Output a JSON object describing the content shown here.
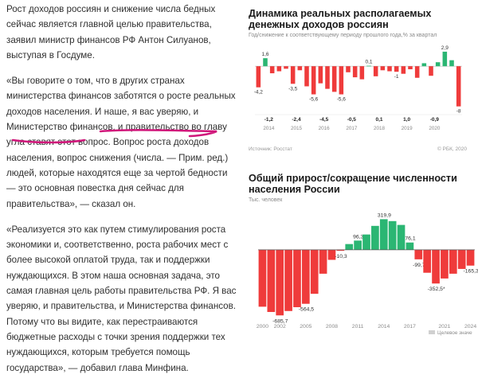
{
  "article": {
    "paragraphs": [
      "Рост доходов россиян и снижение числа бедных сейчас является главной целью правительства, заявил министр финансов РФ Антон Силуанов, выступая в Госдуме.",
      "«Вы говорите о том, что в других странах министерства финансов заботятся о росте реальных доходов населения. И наше, я вас уверяю, и Министерство финансов, и правительство во главу угла ставят этот вопрос. Вопрос роста доходов населения, вопрос снижения (числа. — Прим. ред.) людей, которые находятся еще за чертой бедности — это основная повестка дня сейчас для правительства», — сказал он.",
      "«Реализуется это как путем стимулирования роста экономики и, соответственно, роста рабочих мест с более высокой оплатой труда, так и поддержки нуждающихся. В этом наша основная задача, это самая главная цель работы правительства РФ. Я вас уверяю, и правительства, и Министерства финансов. Потому что вы видите, как перестраиваются бюджетные расходы с точки зрения поддержки тех нуждающихся, которым требуется помощь государства», — добавил глава Минфина."
    ]
  },
  "chart_data": [
    {
      "type": "bar",
      "title": "Динамика реальных располагаемых денежных доходов россиян",
      "subtitle": "Год/снижение к соответствующему периоду прошлого года,% за квартал",
      "xlabel": "",
      "ylabel": "",
      "x_ticks": [
        "2014",
        "2015",
        "2016",
        "2017",
        "2018",
        "2019",
        "2020"
      ],
      "annual_labels": [
        "-1,2",
        "-2,4",
        "-4,5",
        "-0,5",
        "0,1",
        "1,0",
        "-0,9"
      ],
      "values": [
        -4.2,
        1.6,
        -1.4,
        -1.0,
        -0.5,
        -3.5,
        -0.8,
        -4.0,
        -5.6,
        -3.4,
        -4.5,
        -5.1,
        -5.6,
        -1.2,
        -2.2,
        -2.6,
        0.1,
        -2.0,
        -0.8,
        -1.0,
        -1.1,
        -1.5,
        -0.6,
        -2.3,
        0.6,
        -1.9,
        0.8,
        2.9,
        1.2,
        -8.0
      ],
      "labels": [
        "-4,2",
        "1,6",
        "",
        "",
        "",
        "-3,5",
        "",
        "",
        "-5,6",
        "",
        "",
        "",
        "-5,6",
        "",
        "",
        "",
        "0,1",
        "",
        "",
        "",
        "-1",
        "",
        "",
        "",
        "",
        "",
        "",
        "2,9",
        "",
        "-8"
      ],
      "ylim": [
        -9,
        4
      ],
      "colors": {
        "positive": "#2bb673",
        "negative": "#ef3b3b"
      },
      "source": "Источник: Росстат",
      "credit": "© РБК, 2020"
    },
    {
      "type": "bar",
      "title": "Общий прирост/сокращение численности населения России",
      "subtitle": "Тыс. человек",
      "xlabel": "",
      "ylabel": "",
      "x_ticks": [
        "2000",
        "2002",
        "2005",
        "2008",
        "2011",
        "2014",
        "2017",
        "2021",
        "2024"
      ],
      "categories": [
        "2000",
        "2001",
        "2002",
        "2003",
        "2004",
        "2005",
        "2006",
        "2007",
        "2008",
        "2009",
        "2010",
        "2011",
        "2012",
        "2013",
        "2014",
        "2015",
        "2016",
        "2017",
        "2018",
        "2019",
        "2020",
        "2021",
        "2022",
        "2023",
        "2024"
      ],
      "values": [
        -595,
        -650,
        -685.7,
        -640,
        -600,
        -564.5,
        -460,
        -250,
        -105,
        -10.3,
        60,
        96.3,
        160,
        250,
        319.9,
        300,
        260,
        76.1,
        -99.7,
        -240,
        -352.5,
        -300,
        -250,
        -200,
        -165.3
      ],
      "labels": [
        "",
        "",
        "-685,7",
        "",
        "",
        "-564,5",
        "",
        "",
        "",
        "-10,3",
        "",
        "96,3",
        "",
        "",
        "319,9",
        "",
        "",
        "76,1",
        "-99,7",
        "",
        "-352,5*",
        "",
        "",
        "",
        "-165,3"
      ],
      "ylim": [
        -700,
        340
      ],
      "legend": "Целевое значе",
      "colors": {
        "positive": "#2bb673",
        "negative": "#ef3b3b",
        "target": "#d0d0d0"
      }
    }
  ]
}
